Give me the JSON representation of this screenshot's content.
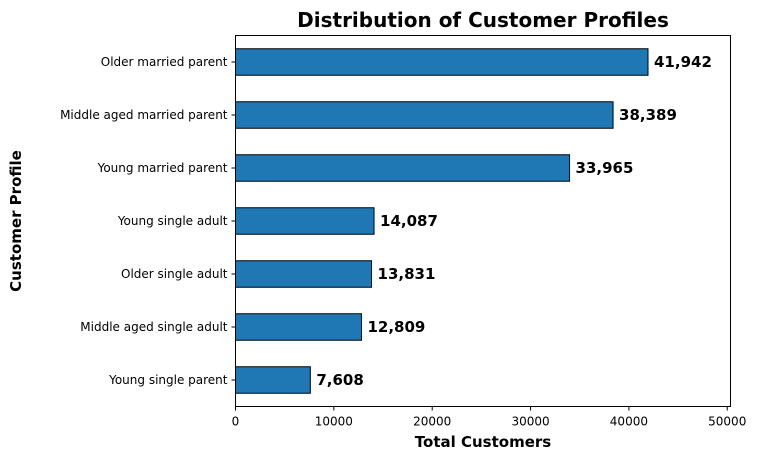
{
  "chart_data": {
    "type": "bar",
    "orientation": "horizontal",
    "title": "Distribution of Customer Profiles",
    "xlabel": "Total Customers",
    "ylabel": "Customer Profile",
    "categories": [
      "Older married parent",
      "Middle aged married parent",
      "Young married parent",
      "Young single adult",
      "Older single adult",
      "Middle aged single adult",
      "Young single parent"
    ],
    "values": [
      41942,
      38389,
      33965,
      14087,
      13831,
      12809,
      7608
    ],
    "data_labels": [
      "41,942",
      "38,389",
      "33,965",
      "14,087",
      "13,831",
      "12,809",
      "7,608"
    ],
    "xlim": [
      0,
      50330
    ],
    "xticks": [
      0,
      10000,
      20000,
      30000,
      40000,
      50000
    ],
    "xtick_labels": [
      "0",
      "10000",
      "20000",
      "30000",
      "40000",
      "50000"
    ],
    "grid": false,
    "bar_color": "#1f77b4",
    "edge_color": "#000000"
  }
}
